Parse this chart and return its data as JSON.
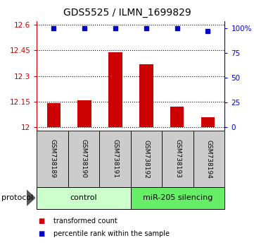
{
  "title": "GDS5525 / ILMN_1699829",
  "samples": [
    "GSM738189",
    "GSM738190",
    "GSM738191",
    "GSM738192",
    "GSM738193",
    "GSM738194"
  ],
  "bar_values": [
    12.14,
    12.16,
    12.44,
    12.37,
    12.12,
    12.06
  ],
  "bar_bottom": 12.0,
  "bar_color": "#cc0000",
  "blue_values": [
    100,
    100,
    100,
    100,
    100,
    97
  ],
  "blue_color": "#0000cc",
  "ylim_left": [
    11.98,
    12.62
  ],
  "yticks_left": [
    12.0,
    12.15,
    12.3,
    12.45,
    12.6
  ],
  "ytick_labels_left": [
    "12",
    "12.15",
    "12.3",
    "12.45",
    "12.6"
  ],
  "ylim_right": [
    -3.5,
    107
  ],
  "yticks_right": [
    0,
    25,
    50,
    75,
    100
  ],
  "ytick_labels_right": [
    "0",
    "25",
    "50",
    "75",
    "100%"
  ],
  "left_axis_color": "#cc0000",
  "right_axis_color": "#0000cc",
  "protocol_labels": [
    "control",
    "miR-205 silencing"
  ],
  "protocol_colors_light": "#ccffcc",
  "protocol_colors_dark": "#66ee66",
  "sample_box_color": "#cccccc",
  "legend_items": [
    {
      "label": "transformed count",
      "color": "#cc0000"
    },
    {
      "label": "percentile rank within the sample",
      "color": "#0000cc"
    }
  ]
}
